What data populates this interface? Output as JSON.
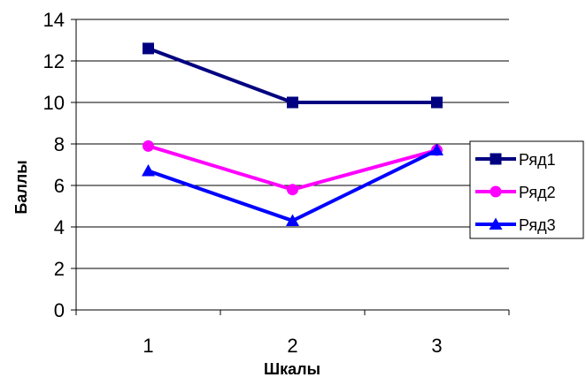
{
  "chart_data": {
    "type": "line",
    "title": "",
    "xlabel": "Шкалы",
    "ylabel": "Баллы",
    "categories": [
      "1",
      "2",
      "3"
    ],
    "ylim": [
      0,
      14
    ],
    "yticks": [
      "0",
      "2",
      "4",
      "6",
      "8",
      "10",
      "12",
      "14"
    ],
    "grid": "horizontal",
    "legend_position": "right",
    "series": [
      {
        "name": "Ряд1",
        "values": [
          12.6,
          10.0,
          10.0
        ],
        "color": "#000080",
        "marker": "square"
      },
      {
        "name": "Ряд2",
        "values": [
          7.9,
          5.8,
          7.7
        ],
        "color": "#ff00ff",
        "marker": "circle"
      },
      {
        "name": "Ряд3",
        "values": [
          6.7,
          4.3,
          7.7
        ],
        "color": "#0000ff",
        "marker": "triangle"
      }
    ]
  }
}
